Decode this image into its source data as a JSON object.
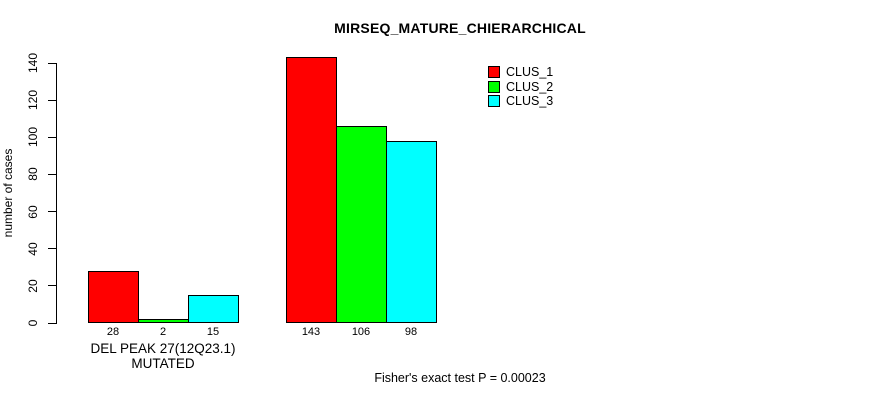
{
  "chart_data": {
    "type": "bar",
    "title": "MIRSEQ_MATURE_CHIERARCHICAL",
    "ylabel": "number of cases",
    "xlabel": "",
    "categories": [
      "DEL PEAK 27(12Q23.1) MUTATED",
      ""
    ],
    "series": [
      {
        "name": "CLUS_1",
        "color": "#FF0000",
        "values": [
          28,
          143
        ]
      },
      {
        "name": "CLUS_2",
        "color": "#00FF00",
        "values": [
          2,
          106
        ]
      },
      {
        "name": "CLUS_3",
        "color": "#00FFFF",
        "values": [
          15,
          98
        ]
      }
    ],
    "yticks": [
      0,
      20,
      40,
      60,
      80,
      100,
      120,
      140
    ],
    "ylim": [
      0,
      140
    ],
    "grid": false,
    "bar_value_labels": [
      [
        28,
        2,
        15
      ],
      [
        143,
        106,
        98
      ]
    ],
    "legend": {
      "position": "top-right",
      "entries": [
        {
          "label": "CLUS_1",
          "color": "#FF0000"
        },
        {
          "label": "CLUS_2",
          "color": "#00FF00"
        },
        {
          "label": "CLUS_3",
          "color": "#00FFFF"
        }
      ]
    },
    "annotation": "Fisher's exact test P = 0.00023"
  },
  "colors": {
    "background": "#FFFFFF",
    "axis": "#000000",
    "text": "#000000",
    "clus_1": "#FF0000",
    "clus_2": "#00FF00",
    "clus_3": "#00FFFF"
  }
}
